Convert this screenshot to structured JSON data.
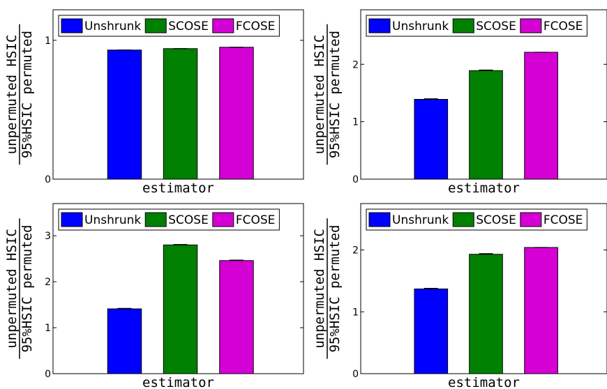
{
  "chart_data": [
    {
      "type": "bar",
      "categories": [
        "Unshrunk",
        "SCOSE",
        "FCOSE"
      ],
      "values": [
        0.93,
        0.94,
        0.95
      ],
      "error": [
        0.0,
        0.0,
        0.0
      ],
      "colors": [
        "#0000ff",
        "#008000",
        "#d400d4"
      ],
      "ylim": [
        0,
        1.22
      ],
      "yticks": [
        0,
        1
      ],
      "xlabel": "estimator",
      "ylabel_numerator": "unpermuted HSIC",
      "ylabel_denominator": "95%HSIC permuted",
      "legend": [
        "Unshrunk",
        "SCOSE",
        "FCOSE"
      ],
      "legend_position": "top"
    },
    {
      "type": "bar",
      "categories": [
        "Unshrunk",
        "SCOSE",
        "FCOSE"
      ],
      "values": [
        1.39,
        1.89,
        2.21
      ],
      "error": [
        0.01,
        0.01,
        0.0
      ],
      "colors": [
        "#0000ff",
        "#008000",
        "#d400d4"
      ],
      "ylim": [
        0,
        2.95
      ],
      "yticks": [
        0,
        1,
        2
      ],
      "xlabel": "estimator",
      "ylabel_numerator": "unpermuted HSIC",
      "ylabel_denominator": "95%HSIC permuted",
      "legend": [
        "Unshrunk",
        "SCOSE",
        "FCOSE"
      ],
      "legend_position": "top"
    },
    {
      "type": "bar",
      "categories": [
        "Unshrunk",
        "SCOSE",
        "FCOSE"
      ],
      "values": [
        1.41,
        2.8,
        2.46
      ],
      "error": [
        0.01,
        0.01,
        0.01
      ],
      "colors": [
        "#0000ff",
        "#008000",
        "#d400d4"
      ],
      "ylim": [
        0,
        3.7
      ],
      "yticks": [
        0,
        1,
        2,
        3
      ],
      "xlabel": "estimator",
      "ylabel_numerator": "unpermuted HSIC",
      "ylabel_denominator": "95%HSIC permuted",
      "legend": [
        "Unshrunk",
        "SCOSE",
        "FCOSE"
      ],
      "legend_position": "top"
    },
    {
      "type": "bar",
      "categories": [
        "Unshrunk",
        "SCOSE",
        "FCOSE"
      ],
      "values": [
        1.37,
        1.93,
        2.04
      ],
      "error": [
        0.01,
        0.01,
        0.0
      ],
      "colors": [
        "#0000ff",
        "#008000",
        "#d400d4"
      ],
      "ylim": [
        0,
        2.75
      ],
      "yticks": [
        0,
        1,
        2
      ],
      "xlabel": "estimator",
      "ylabel_numerator": "unpermuted HSIC",
      "ylabel_denominator": "95%HSIC permuted",
      "legend": [
        "Unshrunk",
        "SCOSE",
        "FCOSE"
      ],
      "legend_position": "top"
    }
  ]
}
